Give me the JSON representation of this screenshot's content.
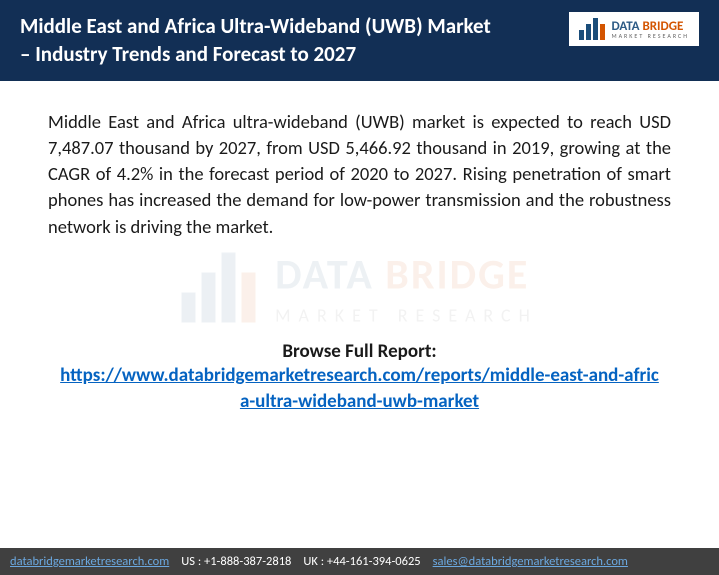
{
  "header": {
    "title": "Middle East and Africa Ultra-Wideband (UWB) Market – Industry Trends and Forecast to 2027",
    "background_color": "#122f55",
    "text_color": "#ffffff"
  },
  "logo": {
    "brand_primary": "DATA",
    "brand_accent": "BRIDGE",
    "tagline": "MARKET RESEARCH",
    "primary_color": "#2c5a85",
    "accent_color": "#d35400"
  },
  "body": {
    "description": "Middle East and Africa ultra-wideband (UWB) market is expected to reach USD 7,487.07 thousand by 2027, from USD 5,466.92 thousand in 2019, growing at the CAGR of 4.2% in the forecast period of 2020 to 2027. Rising penetration of smart phones has increased the demand for low-power transmission and the robustness network is driving the market."
  },
  "browse": {
    "label": "Browse Full Report:",
    "url": "https://www.databridgemarketresearch.com/reports/middle-east-and-africa-ultra-wideband-uwb-market",
    "link_color": "#0563c1"
  },
  "footer": {
    "website": "databridgemarketresearch.com",
    "us_phone": "US : +1-888-387-2818",
    "uk_phone": "UK : +44-161-394-0625",
    "email": "sales@databridgemarketresearch.com",
    "background_color": "#404040"
  }
}
